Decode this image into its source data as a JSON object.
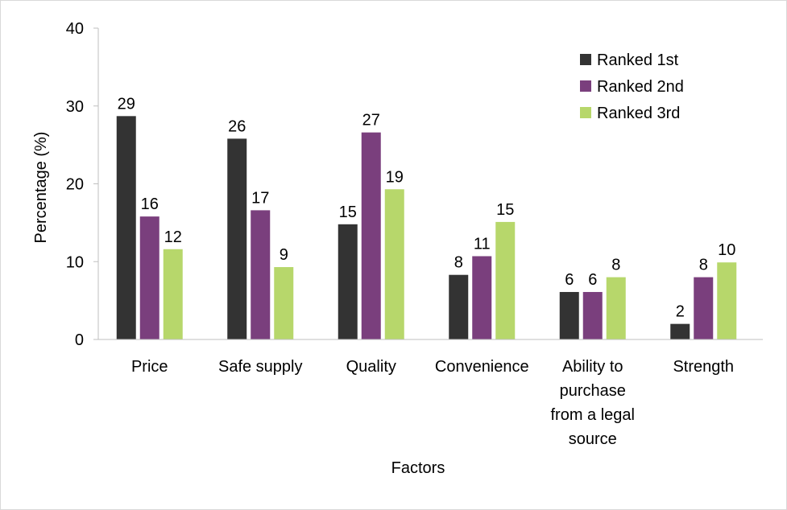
{
  "chart_data": {
    "type": "bar",
    "title": "",
    "xlabel": "Factors",
    "ylabel": "Percentage (%)",
    "ylim": [
      0,
      40
    ],
    "yticks": [
      0,
      10,
      20,
      30,
      40
    ],
    "grid": false,
    "legend_position": "top-right",
    "categories": [
      [
        "Price"
      ],
      [
        "Safe supply"
      ],
      [
        "Quality"
      ],
      [
        "Convenience"
      ],
      [
        "Ability to",
        "purchase",
        "from a legal",
        "source"
      ],
      [
        "Strength"
      ]
    ],
    "series": [
      {
        "name": "Ranked 1st",
        "color": "#333333",
        "values": [
          28.7,
          25.8,
          14.8,
          8.3,
          6.1,
          2.0
        ],
        "labels": [
          "29",
          "26",
          "15",
          "8",
          "6",
          "2"
        ]
      },
      {
        "name": "Ranked 2nd",
        "color": "#7a3f7d",
        "values": [
          15.8,
          16.6,
          26.6,
          10.7,
          6.1,
          8.0
        ],
        "labels": [
          "16",
          "17",
          "27",
          "11",
          "6",
          "8"
        ]
      },
      {
        "name": "Ranked 3rd",
        "color": "#b7d76b",
        "values": [
          11.6,
          9.3,
          19.3,
          15.1,
          8.0,
          9.9
        ],
        "labels": [
          "12",
          "9",
          "19",
          "15",
          "8",
          "10"
        ]
      }
    ]
  }
}
